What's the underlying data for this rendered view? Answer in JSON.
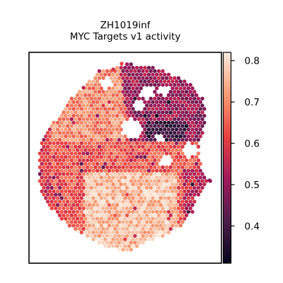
{
  "chart_data": {
    "type": "heatmap",
    "subtype": "spatial transcriptomics spot plot",
    "title": "ZH1019inf",
    "subtitle": "MYC Targets v1 activity",
    "xlabel": "",
    "ylabel": "",
    "axes_ticks": false,
    "grid": false,
    "colormap": "rocket",
    "colormap_stops": [
      "#03051a",
      "#4c1d4b",
      "#a11a5b",
      "#e83f3f",
      "#f69c73",
      "#faebdd"
    ],
    "colorbar": {
      "position": "right",
      "range": [
        0.31,
        0.82
      ],
      "ticks": [
        0.4,
        0.5,
        0.6,
        0.7,
        0.8
      ],
      "tick_labels": [
        "0.4",
        "0.5",
        "0.6",
        "0.7",
        "0.8"
      ]
    },
    "tissue_regions": [
      {
        "region": "upper-left lobe",
        "typical_activity": 0.7
      },
      {
        "region": "central band",
        "typical_activity": 0.64
      },
      {
        "region": "lower-center",
        "typical_activity": 0.76
      },
      {
        "region": "left border",
        "typical_activity": 0.58
      },
      {
        "region": "upper-right lobe",
        "typical_activity": 0.5
      },
      {
        "region": "right-middle notch",
        "typical_activity": 0.4
      },
      {
        "region": "lower-right edge",
        "typical_activity": 0.55
      }
    ]
  }
}
